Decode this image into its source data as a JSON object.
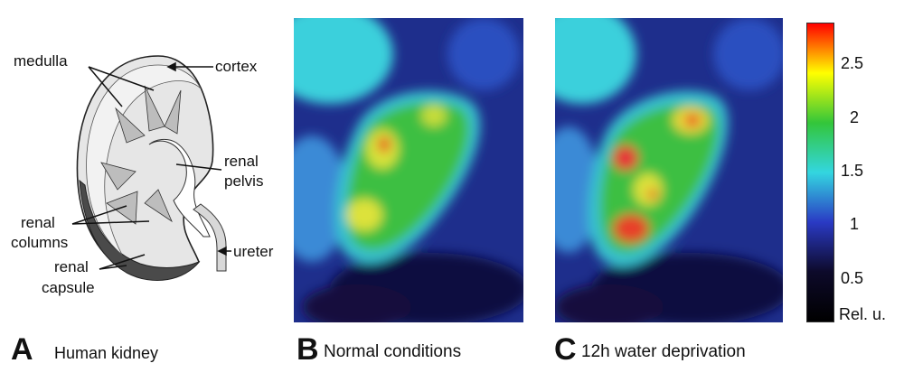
{
  "panel_a": {
    "letter": "A",
    "caption": "Human kidney",
    "labels": {
      "medulla": "medulla",
      "cortex": "cortex",
      "renal_pelvis_1": "renal",
      "renal_pelvis_2": "pelvis",
      "renal_columns_1": "renal",
      "renal_columns_2": "columns",
      "ureter": "ureter",
      "renal_capsule_1": "renal",
      "renal_capsule_2": "capsule"
    }
  },
  "panel_b": {
    "letter": "B",
    "caption": "Normal conditions"
  },
  "panel_c": {
    "letter": "C",
    "caption": "12h water deprivation"
  },
  "colorbar": {
    "ticks": [
      "2.5",
      "2",
      "1.5",
      "1",
      "0.5"
    ],
    "unit": "Rel. u.",
    "colors": [
      "#ff0000",
      "#ffff00",
      "#33c63a",
      "#33d6e0",
      "#2a3ac4",
      "#0d0a2a",
      "#000000"
    ]
  }
}
